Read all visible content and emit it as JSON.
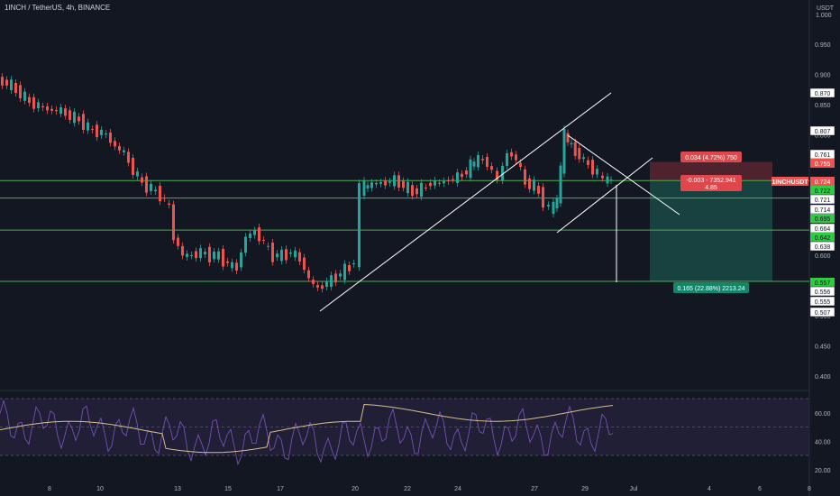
{
  "header": {
    "title": "1INCH / TetherUS, 4h, BINANCE",
    "currency": "USDT",
    "top_value": "1.000"
  },
  "colors": {
    "background": "#131722",
    "up": "#26a69a",
    "down": "#ef5350",
    "level_line": "#4caf50",
    "trendline": "#ffffff",
    "rsi_line": "#7e57c2",
    "rsi_ma": "#d7bf8a",
    "rsi_band": "#2a2444",
    "profit_zone": "#1a4a44",
    "loss_zone": "#5a2630"
  },
  "chart_data": {
    "type": "candlestick",
    "symbol": "1INCHUSDT",
    "price_axis": {
      "ticks": [
        "0.950",
        "0.900",
        "0.850",
        "0.800",
        "0.750",
        "0.700",
        "0.650",
        "0.600",
        "0.550",
        "0.500",
        "0.450",
        "0.400"
      ],
      "ylim": [
        0.37,
        1.0
      ]
    },
    "x_axis": {
      "ticks": [
        "8",
        "10",
        "13",
        "15",
        "17",
        "20",
        "22",
        "24",
        "27",
        "29",
        "Jul",
        "4",
        "6",
        "8"
      ]
    },
    "price_labels": [
      {
        "text": "0.870",
        "style": "white"
      },
      {
        "text": "0.807",
        "style": "white"
      },
      {
        "text": "0.761",
        "style": "white"
      },
      {
        "text": "0.755",
        "style": "red"
      },
      {
        "text": "1INCHUSDT",
        "style": "red"
      },
      {
        "text": "0.724",
        "style": "red"
      },
      {
        "text": "0.722",
        "style": "green"
      },
      {
        "text": "0.721",
        "style": "white"
      },
      {
        "text": "0.714",
        "style": "white"
      },
      {
        "text": "0.695",
        "style": "green"
      },
      {
        "text": "0.664",
        "style": "white"
      },
      {
        "text": "0.642",
        "style": "green"
      },
      {
        "text": "0.638",
        "style": "white"
      },
      {
        "text": "0.557",
        "style": "green"
      },
      {
        "text": "0.556",
        "style": "white"
      },
      {
        "text": "0.555",
        "style": "white"
      },
      {
        "text": "0.507",
        "style": "white"
      }
    ],
    "horizontal_levels": [
      0.724,
      0.695,
      0.642,
      0.557
    ],
    "position_tool": {
      "stop_label": "0.034 (4.72%) 750",
      "current_label_1": "-0.003 - 7352.941",
      "current_label_2": "4.85",
      "target_label": "0.165 (22.88%) 2213.24",
      "entry": 0.722,
      "stop": 0.755,
      "target": 0.557
    },
    "rsi": {
      "ticks": [
        "60.00",
        "40.00",
        "20.00"
      ],
      "upper": 70,
      "lower": 30,
      "ylim": [
        15,
        75
      ]
    }
  }
}
